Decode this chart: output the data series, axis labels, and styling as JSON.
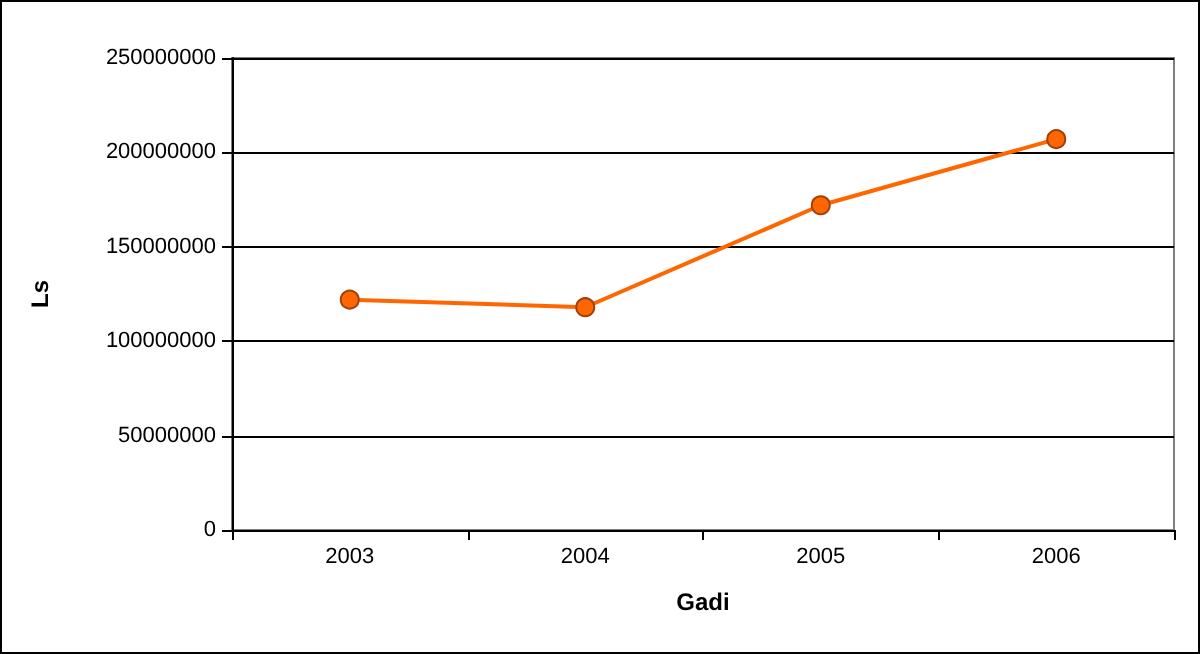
{
  "chart_data": {
    "type": "line",
    "xlabel": "Gadi",
    "ylabel": "Ls",
    "categories": [
      "2003",
      "2004",
      "2005",
      "2006"
    ],
    "series": [
      {
        "color": "#ff6600",
        "values": [
          122000000,
          118000000,
          172000000,
          207000000
        ]
      }
    ],
    "ylim": [
      0,
      250000000
    ],
    "yticks": [
      0,
      50000000,
      100000000,
      150000000,
      200000000,
      250000000
    ],
    "grid": "y",
    "marker": "circle",
    "line_style": "solid"
  }
}
